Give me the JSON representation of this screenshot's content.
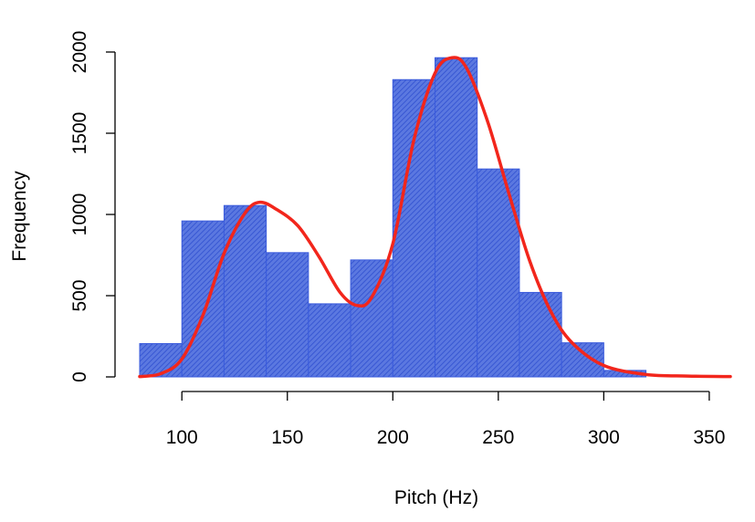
{
  "chart_data": {
    "type": "bar",
    "title": "",
    "xlabel": "Pitch (Hz)",
    "ylabel": "Frequency",
    "xlim": [
      80,
      360
    ],
    "ylim": [
      0,
      2000
    ],
    "x_ticks": [
      100,
      150,
      200,
      250,
      300,
      350
    ],
    "x_tick_labels": [
      "100",
      "150",
      "200",
      "250",
      "300",
      "350"
    ],
    "y_ticks": [
      0,
      500,
      1000,
      1500,
      2000
    ],
    "y_tick_labels": [
      "0",
      "500",
      "1000",
      "1500",
      "2000"
    ],
    "grid": false,
    "legend": "none",
    "colors": {
      "bar_fill": "#5b78e0",
      "bar_hatch": "#2f4fd0",
      "bar_border": "#3a5bdc",
      "density_curve": "#f2261c"
    },
    "bins": [
      {
        "start": 80,
        "end": 100,
        "value": 205
      },
      {
        "start": 100,
        "end": 120,
        "value": 960
      },
      {
        "start": 120,
        "end": 140,
        "value": 1055
      },
      {
        "start": 140,
        "end": 160,
        "value": 765
      },
      {
        "start": 160,
        "end": 180,
        "value": 450
      },
      {
        "start": 180,
        "end": 200,
        "value": 720
      },
      {
        "start": 200,
        "end": 220,
        "value": 1830
      },
      {
        "start": 220,
        "end": 240,
        "value": 1965
      },
      {
        "start": 240,
        "end": 260,
        "value": 1280
      },
      {
        "start": 260,
        "end": 280,
        "value": 520
      },
      {
        "start": 280,
        "end": 300,
        "value": 210
      },
      {
        "start": 300,
        "end": 320,
        "value": 40
      }
    ],
    "density_curve": {
      "x": [
        80,
        90,
        100,
        110,
        120,
        130,
        137,
        145,
        155,
        165,
        175,
        183,
        190,
        200,
        210,
        220,
        228,
        235,
        245,
        255,
        265,
        275,
        285,
        300,
        320,
        340,
        360
      ],
      "y": [
        2,
        20,
        110,
        380,
        760,
        1010,
        1075,
        1030,
        930,
        740,
        520,
        440,
        490,
        820,
        1460,
        1870,
        1965,
        1900,
        1570,
        1130,
        710,
        400,
        210,
        70,
        15,
        5,
        2
      ]
    }
  }
}
